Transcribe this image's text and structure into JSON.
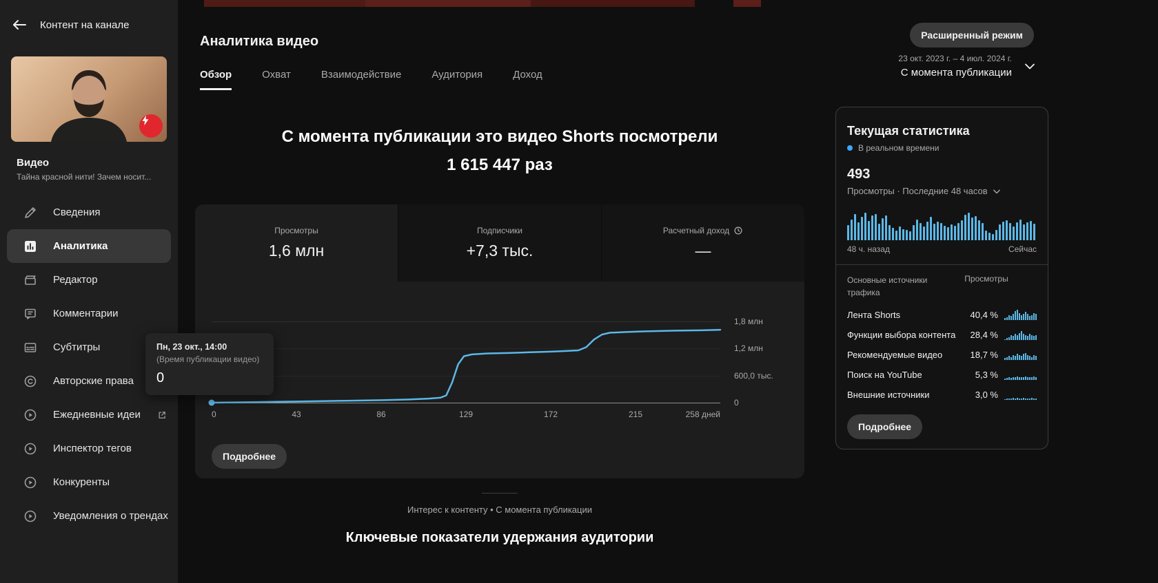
{
  "colors": {
    "accent_blue": "#3ea6ff",
    "chart_line": "#5cb8e8",
    "badge_red": "#e1272e"
  },
  "page": {
    "title": "Аналитика видео"
  },
  "topbar": {
    "advanced_mode_label": "Расширенный режим",
    "date_range": "23 окт. 2023 г. – 4 июл. 2024 г.",
    "period": "С момента публикации"
  },
  "sidebar": {
    "back_label": "Контент на канале",
    "video_label": "Видео",
    "video_title": "Тайна красной нити! Зачем носит...",
    "items": [
      {
        "label": "Сведения"
      },
      {
        "label": "Аналитика"
      },
      {
        "label": "Редактор"
      },
      {
        "label": "Комментарии"
      },
      {
        "label": "Субтитры"
      },
      {
        "label": "Авторские права"
      },
      {
        "label": "Ежедневные идеи"
      },
      {
        "label": "Инспектор тегов"
      },
      {
        "label": "Конкуренты"
      },
      {
        "label": "Уведомления о трендах"
      }
    ]
  },
  "tabs": [
    "Обзор",
    "Охват",
    "Взаимодействие",
    "Аудитория",
    "Доход"
  ],
  "headline": {
    "line1": "С момента публикации это видео Shorts посмотрели",
    "line2": "1 615 447 раз"
  },
  "metrics": [
    {
      "label": "Просмотры",
      "value": "1,6 млн"
    },
    {
      "label": "Подписчики",
      "value": "+7,3 тыс."
    },
    {
      "label": "Расчетный доход",
      "value": "—"
    }
  ],
  "tooltip": {
    "title": "Пн, 23 окт., 14:00",
    "subtitle": "(Время публикации видео)",
    "value": "0"
  },
  "chart_card": {
    "see_more_label": "Подробнее"
  },
  "chart_data": {
    "type": "line",
    "title": "Просмотры",
    "xlabel": "дней",
    "xmax": 258,
    "ymax": 1800000,
    "xticks": [
      {
        "day": 0,
        "label": "0"
      },
      {
        "day": 43,
        "label": "43"
      },
      {
        "day": 86,
        "label": "86"
      },
      {
        "day": 129,
        "label": "129"
      },
      {
        "day": 172,
        "label": "172"
      },
      {
        "day": 215,
        "label": "215"
      },
      {
        "day": 258,
        "label": "258 дней"
      }
    ],
    "yticks": [
      {
        "value": 1800000,
        "label": "1,8 млн"
      },
      {
        "value": 1200000,
        "label": "1,2 млн"
      },
      {
        "value": 600000,
        "label": "600,0 тыс."
      },
      {
        "value": 0,
        "label": "0"
      }
    ],
    "points": [
      [
        0,
        0
      ],
      [
        21,
        12000
      ],
      [
        43,
        25000
      ],
      [
        64,
        40000
      ],
      [
        86,
        55000
      ],
      [
        100,
        70000
      ],
      [
        110,
        90000
      ],
      [
        116,
        110000
      ],
      [
        119,
        160000
      ],
      [
        122,
        450000
      ],
      [
        125,
        850000
      ],
      [
        128,
        1030000
      ],
      [
        132,
        1070000
      ],
      [
        140,
        1090000
      ],
      [
        150,
        1100000
      ],
      [
        160,
        1115000
      ],
      [
        172,
        1130000
      ],
      [
        180,
        1145000
      ],
      [
        186,
        1160000
      ],
      [
        190,
        1230000
      ],
      [
        194,
        1400000
      ],
      [
        198,
        1510000
      ],
      [
        202,
        1550000
      ],
      [
        210,
        1565000
      ],
      [
        220,
        1580000
      ],
      [
        235,
        1595000
      ],
      [
        250,
        1605000
      ],
      [
        258,
        1615447
      ]
    ]
  },
  "footer": {
    "context_label": "Интерес к контенту • С момента публикации",
    "next_section_title": "Ключевые показатели удержания аудитории"
  },
  "realtime": {
    "title": "Текущая статистика",
    "live_label": "В реальном времени",
    "count": "493",
    "count_caption": "Просмотры · Последние 48 часов",
    "axis_left": "48 ч. назад",
    "axis_right": "Сейчас",
    "sources_header": "Основные источники трафика",
    "views_header": "Просмотры",
    "see_more_label": "Подробнее",
    "bars": [
      0.55,
      0.75,
      0.95,
      0.65,
      0.85,
      1,
      0.7,
      0.9,
      0.95,
      0.6,
      0.8,
      0.9,
      0.55,
      0.45,
      0.35,
      0.5,
      0.4,
      0.38,
      0.33,
      0.55,
      0.75,
      0.62,
      0.5,
      0.68,
      0.85,
      0.6,
      0.68,
      0.62,
      0.52,
      0.47,
      0.57,
      0.52,
      0.62,
      0.72,
      0.92,
      1,
      0.82,
      0.88,
      0.72,
      0.62,
      0.35,
      0.28,
      0.22,
      0.38,
      0.58,
      0.68,
      0.72,
      0.62,
      0.5,
      0.66,
      0.74,
      0.58,
      0.64,
      0.7,
      0.6
    ],
    "sources": [
      {
        "name": "Лента Shorts",
        "value": "40,4 %",
        "spark": [
          0.2,
          0.3,
          0.5,
          0.4,
          0.6,
          0.9,
          1,
          0.7,
          0.5,
          0.6,
          0.8,
          0.6,
          0.4,
          0.5,
          0.7,
          0.6
        ]
      },
      {
        "name": "Функции выбора контента",
        "value": "28,4 %",
        "spark": [
          0.1,
          0.2,
          0.3,
          0.5,
          0.4,
          0.6,
          0.5,
          0.7,
          0.9,
          0.6,
          0.5,
          0.4,
          0.6,
          0.5,
          0.4,
          0.5
        ]
      },
      {
        "name": "Рекомендуемые видео",
        "value": "18,7 %",
        "spark": [
          0.2,
          0.3,
          0.4,
          0.3,
          0.5,
          0.4,
          0.6,
          0.5,
          0.4,
          0.6,
          0.7,
          0.5,
          0.4,
          0.3,
          0.5,
          0.4
        ]
      },
      {
        "name": "Поиск на YouTube",
        "value": "5,3 %",
        "spark": [
          0.15,
          0.2,
          0.25,
          0.2,
          0.3,
          0.25,
          0.35,
          0.3,
          0.25,
          0.3,
          0.35,
          0.3,
          0.25,
          0.3,
          0.35,
          0.3
        ]
      },
      {
        "name": "Внешние источники",
        "value": "3,0 %",
        "spark": [
          0.1,
          0.12,
          0.15,
          0.12,
          0.18,
          0.15,
          0.2,
          0.15,
          0.12,
          0.18,
          0.15,
          0.12,
          0.15,
          0.18,
          0.15,
          0.12
        ]
      }
    ]
  }
}
